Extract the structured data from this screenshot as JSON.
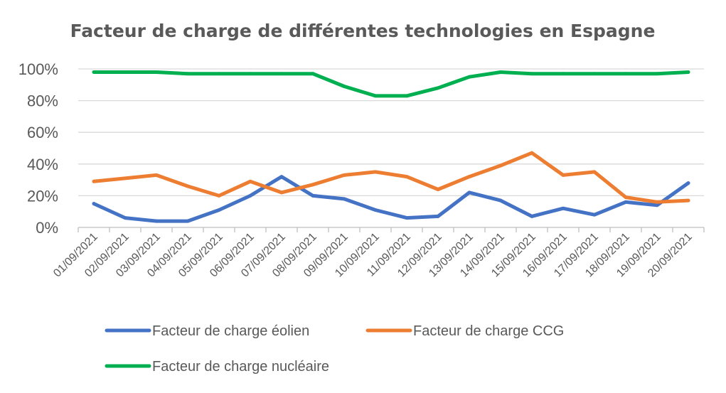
{
  "chart_data": {
    "type": "line",
    "title": "Facteur de charge de différentes technologies en Espagne",
    "xlabel": "",
    "ylabel": "",
    "ylim": [
      0,
      100
    ],
    "y_ticks": [
      "0%",
      "20%",
      "40%",
      "60%",
      "80%",
      "100%"
    ],
    "grid": true,
    "legend_position": "bottom",
    "categories": [
      "01/09/2021",
      "02/09/2021",
      "03/09/2021",
      "04/09/2021",
      "05/09/2021",
      "06/09/2021",
      "07/09/2021",
      "08/09/2021",
      "09/09/2021",
      "10/09/2021",
      "11/09/2021",
      "12/09/2021",
      "13/09/2021",
      "14/09/2021",
      "15/09/2021",
      "16/09/2021",
      "17/09/2021",
      "18/09/2021",
      "19/09/2021",
      "20/09/2021"
    ],
    "series": [
      {
        "name": "Facteur de charge éolien",
        "color": "#4472c4",
        "values": [
          15,
          6,
          4,
          4,
          11,
          20,
          32,
          20,
          18,
          11,
          6,
          7,
          22,
          17,
          7,
          12,
          8,
          16,
          14,
          28
        ]
      },
      {
        "name": "Facteur de charge CCG",
        "color": "#ed7d31",
        "values": [
          29,
          31,
          33,
          26,
          20,
          29,
          22,
          27,
          33,
          35,
          32,
          24,
          32,
          39,
          47,
          33,
          35,
          19,
          16,
          17
        ]
      },
      {
        "name": "Facteur de charge nucléaire",
        "color": "#00b050",
        "values": [
          98,
          98,
          98,
          97,
          97,
          97,
          97,
          97,
          89,
          83,
          83,
          88,
          95,
          98,
          97,
          97,
          97,
          97,
          97,
          98
        ]
      }
    ]
  }
}
